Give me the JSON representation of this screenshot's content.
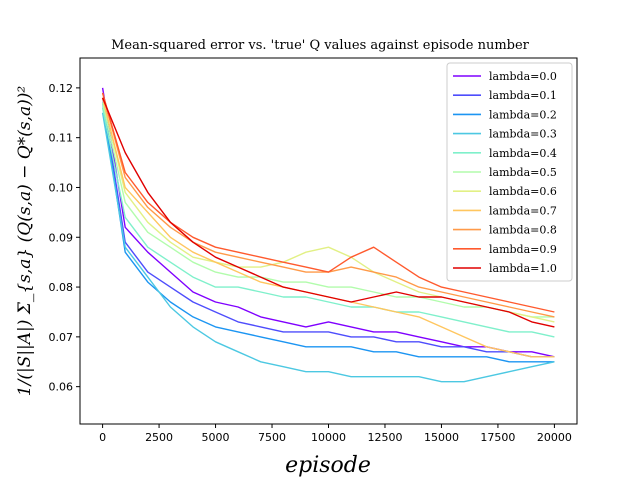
{
  "chart_data": {
    "type": "line",
    "title": "Mean-squared error vs. 'true' Q values against episode number",
    "xlabel": "episode",
    "ylabel": "1/(|S||A|) Σ_{s,a} (Q(s,a) − Q*(s,a))²",
    "xlim": [
      -1000,
      21000
    ],
    "ylim": [
      0.0525,
      0.126
    ],
    "xticks": [
      0,
      2500,
      5000,
      7500,
      10000,
      12500,
      15000,
      17500,
      20000
    ],
    "yticks": [
      0.06,
      0.07,
      0.08,
      0.09,
      0.1,
      0.11,
      0.12
    ],
    "legend_position": "upper right",
    "grid": false,
    "x": [
      0,
      1000,
      2000,
      3000,
      4000,
      5000,
      6000,
      7000,
      8000,
      9000,
      10000,
      11000,
      12000,
      13000,
      14000,
      15000,
      16000,
      17000,
      18000,
      19000,
      20000
    ],
    "series": [
      {
        "name": "lambda=0.0",
        "color": "#7f00ff",
        "values": [
          0.12,
          0.092,
          0.087,
          0.083,
          0.079,
          0.077,
          0.076,
          0.074,
          0.073,
          0.072,
          0.073,
          0.072,
          0.071,
          0.071,
          0.07,
          0.069,
          0.068,
          0.068,
          0.067,
          0.067,
          0.066
        ]
      },
      {
        "name": "lambda=0.1",
        "color": "#4e4dfc",
        "values": [
          0.118,
          0.089,
          0.083,
          0.08,
          0.077,
          0.075,
          0.073,
          0.072,
          0.071,
          0.071,
          0.071,
          0.07,
          0.07,
          0.069,
          0.069,
          0.068,
          0.068,
          0.067,
          0.067,
          0.066,
          0.066
        ]
      },
      {
        "name": "lambda=0.2",
        "color": "#1c95f2",
        "values": [
          0.117,
          0.087,
          0.081,
          0.077,
          0.074,
          0.072,
          0.071,
          0.07,
          0.069,
          0.068,
          0.068,
          0.068,
          0.067,
          0.067,
          0.066,
          0.066,
          0.066,
          0.066,
          0.065,
          0.065,
          0.065
        ]
      },
      {
        "name": "lambda=0.3",
        "color": "#4cc8e2",
        "values": [
          0.115,
          0.088,
          0.082,
          0.076,
          0.072,
          0.069,
          0.067,
          0.065,
          0.064,
          0.063,
          0.063,
          0.062,
          0.062,
          0.062,
          0.062,
          0.061,
          0.061,
          0.062,
          0.063,
          0.064,
          0.065
        ]
      },
      {
        "name": "lambda=0.4",
        "color": "#7ff0cb",
        "values": [
          0.116,
          0.094,
          0.088,
          0.085,
          0.082,
          0.08,
          0.08,
          0.079,
          0.078,
          0.078,
          0.077,
          0.076,
          0.076,
          0.075,
          0.075,
          0.074,
          0.073,
          0.072,
          0.071,
          0.071,
          0.07
        ]
      },
      {
        "name": "lambda=0.5",
        "color": "#b2fcac",
        "values": [
          0.117,
          0.097,
          0.091,
          0.088,
          0.085,
          0.083,
          0.082,
          0.082,
          0.081,
          0.081,
          0.08,
          0.08,
          0.079,
          0.078,
          0.078,
          0.077,
          0.076,
          0.076,
          0.075,
          0.074,
          0.074
        ]
      },
      {
        "name": "lambda=0.6",
        "color": "#e2f085",
        "values": [
          0.118,
          0.099,
          0.093,
          0.089,
          0.086,
          0.085,
          0.084,
          0.084,
          0.085,
          0.087,
          0.088,
          0.086,
          0.083,
          0.081,
          0.079,
          0.078,
          0.077,
          0.076,
          0.075,
          0.074,
          0.073
        ]
      },
      {
        "name": "lambda=0.7",
        "color": "#ffc65f",
        "values": [
          0.118,
          0.1,
          0.095,
          0.09,
          0.087,
          0.085,
          0.083,
          0.081,
          0.08,
          0.079,
          0.078,
          0.077,
          0.076,
          0.075,
          0.074,
          0.072,
          0.07,
          0.068,
          0.067,
          0.066,
          0.066
        ]
      },
      {
        "name": "lambda=0.8",
        "color": "#ff9a49",
        "values": [
          0.119,
          0.102,
          0.096,
          0.092,
          0.089,
          0.087,
          0.086,
          0.085,
          0.084,
          0.083,
          0.083,
          0.084,
          0.083,
          0.082,
          0.08,
          0.079,
          0.078,
          0.077,
          0.076,
          0.075,
          0.074
        ]
      },
      {
        "name": "lambda=0.9",
        "color": "#ff5a2e",
        "values": [
          0.119,
          0.103,
          0.097,
          0.093,
          0.09,
          0.088,
          0.087,
          0.086,
          0.085,
          0.084,
          0.083,
          0.086,
          0.088,
          0.085,
          0.082,
          0.08,
          0.079,
          0.078,
          0.077,
          0.076,
          0.075
        ]
      },
      {
        "name": "lambda=1.0",
        "color": "#e00000",
        "values": [
          0.118,
          0.107,
          0.099,
          0.093,
          0.089,
          0.086,
          0.084,
          0.082,
          0.08,
          0.079,
          0.078,
          0.077,
          0.078,
          0.079,
          0.078,
          0.078,
          0.077,
          0.076,
          0.075,
          0.073,
          0.072
        ]
      }
    ]
  }
}
